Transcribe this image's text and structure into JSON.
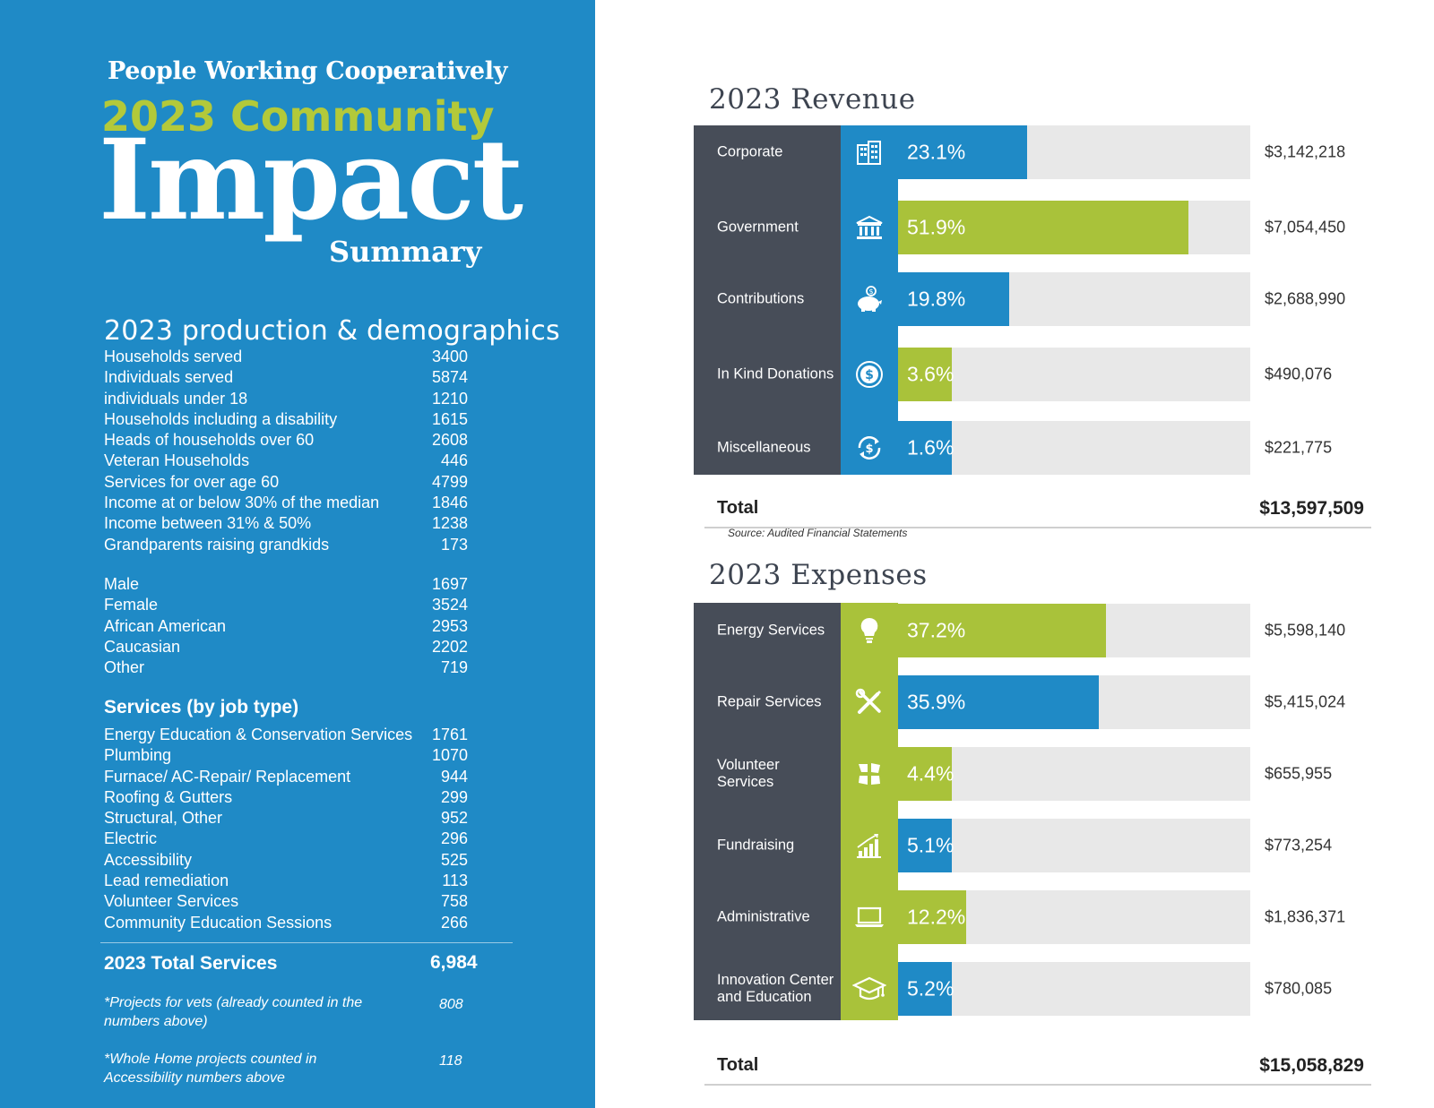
{
  "header": {
    "org": "People Working Cooperatively",
    "year_line": "2023 Community",
    "main": "Impact",
    "tail": "Summary"
  },
  "demographics": {
    "title": "2023 production & demographics",
    "group_a": [
      {
        "label": "Households served",
        "value": "3400"
      },
      {
        "label": "Individuals served",
        "value": "5874"
      },
      {
        "label": "individuals under 18",
        "value": "1210"
      },
      {
        "label": "Households including a disability",
        "value": "1615"
      },
      {
        "label": "Heads of households over 60",
        "value": "2608"
      },
      {
        "label": "Veteran Households",
        "value": "446"
      },
      {
        "label": "Services for over age 60",
        "value": "4799"
      },
      {
        "label": "Income at or below 30% of the median",
        "value": "1846"
      },
      {
        "label": "Income between 31% & 50%",
        "value": "1238"
      },
      {
        "label": "Grandparents raising grandkids",
        "value": "173"
      }
    ],
    "group_b": [
      {
        "label": "Male",
        "value": "1697"
      },
      {
        "label": "Female",
        "value": "3524"
      },
      {
        "label": "African American",
        "value": "2953"
      },
      {
        "label": "Caucasian",
        "value": "2202"
      },
      {
        "label": "Other",
        "value": "719"
      }
    ]
  },
  "services": {
    "title": "Services (by job type)",
    "items": [
      {
        "label": "Energy Education & Conservation Services",
        "value": "1761"
      },
      {
        "label": "Plumbing",
        "value": "1070"
      },
      {
        "label": "Furnace/ AC-Repair/ Replacement",
        "value": "944"
      },
      {
        "label": "Roofing & Gutters",
        "value": "299"
      },
      {
        "label": "Structural, Other",
        "value": "952"
      },
      {
        "label": "Electric",
        "value": "296"
      },
      {
        "label": "Accessibility",
        "value": "525"
      },
      {
        "label": "Lead remediation",
        "value": "113"
      },
      {
        "label": "Volunteer Services",
        "value": "758"
      },
      {
        "label": "Community Education Sessions",
        "value": "266"
      }
    ],
    "total_label": "2023 Total Services",
    "total_value": "6,984",
    "notes": [
      {
        "text": "*Projects for vets (already counted in the numbers above)",
        "value": "808"
      },
      {
        "text": "*Whole Home projects counted in Accessibility numbers above",
        "value": "118"
      }
    ]
  },
  "revenue": {
    "title": "2023 Revenue",
    "rows": [
      {
        "category": "Corporate",
        "icon": "office-building-icon",
        "percent_label": "23.1%",
        "percent": 23.1,
        "amount": "$3,142,218",
        "color": "blue"
      },
      {
        "category": "Government",
        "icon": "government-building-icon",
        "percent_label": "51.9%",
        "percent": 51.9,
        "amount": "$7,054,450",
        "color": "green"
      },
      {
        "category": "Contributions",
        "icon": "piggy-bank-icon",
        "percent_label": "19.8%",
        "percent": 19.8,
        "amount": "$2,688,990",
        "color": "blue"
      },
      {
        "category": "In Kind Donations",
        "icon": "dollar-coin-icon",
        "percent_label": "3.6%",
        "percent": 3.6,
        "amount": "$490,076",
        "color": "green"
      },
      {
        "category": "Miscellaneous",
        "icon": "dollar-cycle-icon",
        "percent_label": "1.6%",
        "percent": 1.6,
        "amount": "$221,775",
        "color": "blue"
      }
    ],
    "total_label": "Total",
    "total_value": "$13,597,509",
    "source": "Source: Audited Financial Statements"
  },
  "expenses": {
    "title": "2023 Expenses",
    "rows": [
      {
        "category": "Energy Services",
        "icon": "lightbulb-icon",
        "percent_label": "37.2%",
        "percent": 37.2,
        "amount": "$5,598,140",
        "color": "green"
      },
      {
        "category": "Repair Services",
        "icon": "wrench-screwdriver-icon",
        "percent_label": "35.9%",
        "percent": 35.9,
        "amount": "$5,415,024",
        "color": "blue"
      },
      {
        "category": "Volunteer Services",
        "icon": "hands-together-icon",
        "percent_label": "4.4%",
        "percent": 4.4,
        "amount": "$655,955",
        "color": "green"
      },
      {
        "category": "Fundraising",
        "icon": "growth-chart-icon",
        "percent_label": "5.1%",
        "percent": 5.1,
        "amount": "$773,254",
        "color": "blue"
      },
      {
        "category": "Administrative",
        "icon": "laptop-icon",
        "percent_label": "12.2%",
        "percent": 12.2,
        "amount": "$1,836,371",
        "color": "green"
      },
      {
        "category": "Innovation Center and Education",
        "icon": "graduation-cap-icon",
        "percent_label": "5.2%",
        "percent": 5.2,
        "amount": "$780,085",
        "color": "blue"
      }
    ],
    "total_label": "Total",
    "total_value": "$15,058,829"
  },
  "colors": {
    "panel_blue": "#1f8ac6",
    "accent_green": "#a9c23a",
    "headline_green": "#b3c93a",
    "dark_gray": "#474d58",
    "track_gray": "#e8e8e8"
  }
}
